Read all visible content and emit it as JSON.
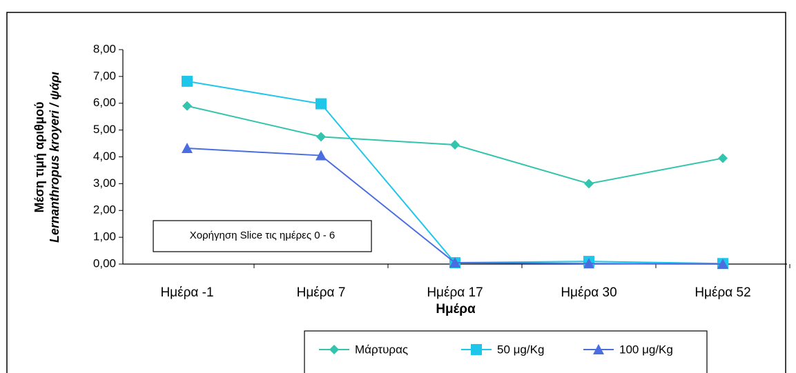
{
  "chart_data": {
    "type": "line",
    "ylabel": [
      "Μέση τιμή αριθμού",
      "Lernanthropus kroyeri / ψάρι"
    ],
    "xlabel": "Ημέρα",
    "annotation": "Χορήγηση Slice τις ημέρες 0 - 6",
    "categories": [
      "Ημέρα -1",
      "Ημέρα 7",
      "Ημέρα 17",
      "Ημέρα 30",
      "Ημέρα 52"
    ],
    "series": [
      {
        "name": "Μάρτυρας",
        "color": "#33c4ad",
        "marker": "diamond",
        "values": [
          5.9,
          4.75,
          4.45,
          3.0,
          3.95
        ]
      },
      {
        "name": "50 μg/Kg",
        "color": "#1ec6ea",
        "marker": "square",
        "values": [
          6.82,
          5.98,
          0.05,
          0.1,
          0.02
        ]
      },
      {
        "name": "100 μg/Kg",
        "color": "#4a6ee0",
        "marker": "triangle",
        "values": [
          4.32,
          4.05,
          0.05,
          0.02,
          0.0
        ]
      }
    ],
    "ylim": [
      0,
      8
    ],
    "yticks": [
      {
        "value": 0,
        "label": "0,00"
      },
      {
        "value": 1,
        "label": "1,00"
      },
      {
        "value": 2,
        "label": "2,00"
      },
      {
        "value": 3,
        "label": "3,00"
      },
      {
        "value": 4,
        "label": "4,00"
      },
      {
        "value": 5,
        "label": "5,00"
      },
      {
        "value": 6,
        "label": "6,00"
      },
      {
        "value": 7,
        "label": "7,00"
      },
      {
        "value": 8,
        "label": "8,00"
      }
    ],
    "legend": "bottom"
  }
}
